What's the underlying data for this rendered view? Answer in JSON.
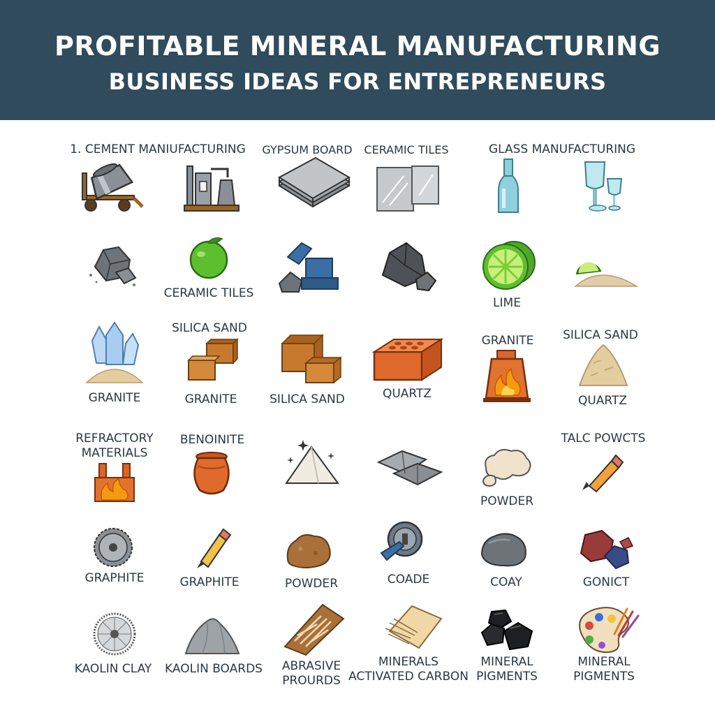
{
  "header": {
    "title_line1": "PROFITABLE MINERAL MANUFACTURING",
    "title_line2": "BUSINESS IDEAS FOR ENTREPRENEURS",
    "background": "#2f4b5c"
  },
  "labels": {
    "cement_manufacturing": "1. CEMENT MANIUFACTURING",
    "gypsum_board": "GYPSUM BOARD",
    "ceramic_tiles_top": "CERAMIC TILES",
    "glass_manufacturing": "GLASS MANUFACTURING",
    "ceramic_tiles_row2": "CERAMIC TILES",
    "lime": "LIME",
    "silica_sand_row3_col2": "SILICA SAND",
    "granite_row3_col5": "GRANITE",
    "silica_sand_row3_col6": "SILICA SAND",
    "granite_row3_col1": "GRANITE",
    "granite_row3_col2": "GRANITE",
    "silica_sand_row3_col3": "SILICA SAND",
    "quartz_row3_col4": "QUARTZ",
    "quartz_row3_col6": "QUARTZ",
    "refractory_materials_line1": "REFRACTORY",
    "refractory_materials_line2": "MATERIALS",
    "benoinite": "BENOINITE",
    "talc_powcts": "TALC POWCTS",
    "powder_row4": "POWDER",
    "graphite_col1": "GRAPHITE",
    "graphite_col2": "GRAPHITE",
    "powder_row5": "POWDER",
    "coade": "COADE",
    "coay": "COAY",
    "gonict": "GONICT",
    "kaolin_clay": "KAOLIN CLAY",
    "kaolin_boards": "KAOLIN BOARDS",
    "abrasive_line1": "ABRASIVE",
    "abrasive_line2": "PROURDS",
    "minerals_line1": "MINERALS",
    "minerals_line2": "ACTIVATED CARBON",
    "mineral_pigments_a_line1": "MINERAL",
    "mineral_pigments_a_line2": "PIGMENTS",
    "mineral_pigments_b_line1": "MINERAL",
    "mineral_pigments_b_line2": "PIGMENTS"
  },
  "icons": [
    "cement-mixer-icon",
    "cement-plant-icon",
    "gypsum-board-stack-icon",
    "ceramic-tiles-icon",
    "glass-bottle-icon",
    "wine-glasses-icon",
    "gray-rocks-icon",
    "green-lime-fruit-icon",
    "excavator-rocks-icon",
    "dark-rocks-icon",
    "lime-slice-icon",
    "lime-sand-pile-icon",
    "quartz-crystal-icon",
    "clay-blocks-icon",
    "brick-blocks-icon",
    "orange-brick-icon",
    "kiln-fire-icon",
    "sand-pile-icon",
    "furnace-fire-icon",
    "clay-pot-icon",
    "pyramid-sparkle-icon",
    "metal-ingots-icon",
    "talc-powder-icon",
    "pencil-icon",
    "grinding-wheel-icon",
    "pencil-icon",
    "brown-rock-icon",
    "crusher-machine-icon",
    "gray-stone-icon",
    "colored-rocks-icon",
    "saw-blade-icon",
    "gray-pile-icon",
    "abrasive-fibers-icon",
    "activated-carbon-icon",
    "coal-lumps-icon",
    "paint-palette-icon"
  ],
  "colors": {
    "text": "#2c3840",
    "accent_orange": "#d9662a",
    "flame": "#f39c12"
  }
}
